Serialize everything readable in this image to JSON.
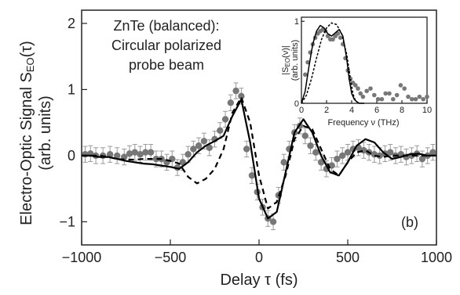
{
  "chart_data": [
    {
      "type": "scatter",
      "xlabel": "Delay τ (fs)",
      "ylabel_line1": "Electro-Optic Signal S",
      "ylabel_sub": "EO",
      "ylabel_arg": "(τ)",
      "ylabel_line2": "(arb. units)",
      "annotation_lines": [
        "ZnTe (balanced):",
        "Circular polarized",
        "probe beam"
      ],
      "panel_label": "(b)",
      "xlim": [
        -1000,
        1000
      ],
      "ylim": [
        -1.35,
        2.2
      ],
      "x_ticks": [
        -1000,
        -500,
        0,
        500,
        1000
      ],
      "x_tick_labels": [
        "−1000",
        "−500",
        "0",
        "500",
        "1000"
      ],
      "y_ticks": [
        -1,
        0,
        1,
        2
      ],
      "y_tick_labels": [
        "−1",
        "0",
        "1",
        "2"
      ],
      "series": [
        {
          "style": "markers-with-errorbars",
          "color": "#777777",
          "x": [
            -980,
            -950,
            -920,
            -880,
            -840,
            -800,
            -760,
            -730,
            -700,
            -670,
            -640,
            -610,
            -580,
            -550,
            -520,
            -490,
            -460,
            -430,
            -400,
            -370,
            -340,
            -310,
            -280,
            -250,
            -220,
            -190,
            -160,
            -130,
            -100,
            -70,
            -40,
            -10,
            20,
            50,
            80,
            110,
            140,
            170,
            200,
            230,
            260,
            290,
            320,
            350,
            380,
            410,
            440,
            470,
            500,
            530,
            560,
            590,
            620,
            650,
            680,
            710,
            740,
            770,
            800,
            830,
            860,
            890,
            920,
            950,
            980
          ],
          "y": [
            0.02,
            0.03,
            0.0,
            0.0,
            0.02,
            0.0,
            -0.02,
            0.03,
            0.05,
            0.02,
            0.05,
            0.05,
            -0.05,
            -0.05,
            -0.1,
            -0.05,
            -0.18,
            -0.1,
            0.02,
            0.1,
            0.15,
            0.22,
            0.12,
            0.25,
            0.38,
            0.55,
            0.8,
            0.98,
            0.9,
            0.1,
            -0.3,
            -0.55,
            -0.78,
            -0.95,
            -1.0,
            -0.6,
            -0.1,
            0.1,
            0.35,
            0.45,
            0.3,
            0.15,
            0.05,
            -0.1,
            -0.2,
            -0.15,
            -0.05,
            0.0,
            0.05,
            0.1,
            0.12,
            0.08,
            0.05,
            0.02,
            0.0,
            0.03,
            0.05,
            0.0,
            0.02,
            -0.02,
            0.0,
            0.03,
            -0.05,
            0.0,
            0.05
          ],
          "err": [
            0.12,
            0.12,
            0.12,
            0.12,
            0.12,
            0.12,
            0.12,
            0.12,
            0.12,
            0.12,
            0.12,
            0.12,
            0.12,
            0.12,
            0.12,
            0.12,
            0.12,
            0.12,
            0.12,
            0.12,
            0.12,
            0.12,
            0.12,
            0.12,
            0.12,
            0.12,
            0.12,
            0.12,
            0.12,
            0.12,
            0.12,
            0.12,
            0.12,
            0.12,
            0.12,
            0.12,
            0.12,
            0.12,
            0.12,
            0.12,
            0.12,
            0.12,
            0.12,
            0.12,
            0.12,
            0.12,
            0.12,
            0.12,
            0.12,
            0.12,
            0.12,
            0.12,
            0.12,
            0.12,
            0.12,
            0.12,
            0.12,
            0.12,
            0.12,
            0.12,
            0.12,
            0.12,
            0.12,
            0.12,
            0.12
          ]
        },
        {
          "style": "solid",
          "color": "#000000",
          "x": [
            -1000,
            -950,
            -900,
            -850,
            -800,
            -750,
            -700,
            -650,
            -600,
            -550,
            -500,
            -450,
            -400,
            -350,
            -300,
            -250,
            -200,
            -150,
            -100,
            -50,
            0,
            50,
            100,
            150,
            200,
            250,
            300,
            350,
            400,
            450,
            500,
            550,
            600,
            650,
            700,
            750,
            800,
            850,
            900,
            950,
            1000
          ],
          "y": [
            0.0,
            0.0,
            -0.02,
            -0.02,
            -0.05,
            -0.08,
            -0.1,
            -0.12,
            -0.13,
            -0.15,
            -0.17,
            -0.2,
            -0.1,
            0.05,
            0.15,
            0.22,
            0.3,
            0.6,
            0.85,
            0.2,
            -0.65,
            -0.95,
            -0.85,
            -0.25,
            0.35,
            0.55,
            0.35,
            0.0,
            -0.25,
            -0.3,
            -0.1,
            0.15,
            0.25,
            0.2,
            0.05,
            -0.05,
            -0.02,
            0.02,
            0.03,
            0.0,
            0.0
          ]
        },
        {
          "style": "dashed",
          "color": "#000000",
          "x": [
            -1000,
            -950,
            -900,
            -850,
            -800,
            -750,
            -700,
            -650,
            -600,
            -550,
            -500,
            -450,
            -400,
            -350,
            -300,
            -250,
            -200,
            -150,
            -100,
            -50,
            0,
            50,
            100,
            150,
            200,
            250,
            300,
            350,
            400,
            450,
            500,
            550,
            600,
            650,
            700,
            750,
            800,
            850,
            900,
            950,
            1000
          ],
          "y": [
            0.0,
            0.0,
            0.0,
            -0.02,
            -0.05,
            -0.06,
            -0.06,
            -0.05,
            -0.05,
            -0.05,
            -0.08,
            -0.12,
            -0.32,
            -0.42,
            -0.35,
            -0.2,
            0.1,
            0.65,
            0.88,
            0.5,
            -0.3,
            -0.8,
            -0.7,
            -0.3,
            0.25,
            0.45,
            0.4,
            0.1,
            -0.2,
            -0.3,
            -0.1,
            0.05,
            0.08,
            0.0,
            -0.02,
            0.0,
            0.0,
            0.0,
            0.0,
            0.0,
            0.0
          ]
        }
      ]
    },
    {
      "type": "scatter",
      "xlabel": "Frequency ν (THz)",
      "ylabel_line1": "|S",
      "ylabel_sub": "EO",
      "ylabel_arg": "(ν)|",
      "ylabel_line2": "(arb. units)",
      "xlim": [
        0,
        10
      ],
      "ylim": [
        0,
        1.05
      ],
      "x_ticks": [
        0,
        2,
        4,
        6,
        8,
        10
      ],
      "x_tick_labels": [
        "0",
        "2",
        "4",
        "6",
        "8",
        "10"
      ],
      "y_ticks": [
        0,
        1
      ],
      "y_tick_labels": [
        "0",
        "1"
      ],
      "series": [
        {
          "style": "markers",
          "color": "#777777",
          "x": [
            0.3,
            0.5,
            0.7,
            0.9,
            1.1,
            1.3,
            1.5,
            1.7,
            1.9,
            2.1,
            2.3,
            2.5,
            2.7,
            2.9,
            3.1,
            3.3,
            3.5,
            3.7,
            3.9,
            4.1,
            4.3,
            4.5,
            4.7,
            4.9,
            5.2,
            5.5,
            5.8,
            6.1,
            6.4,
            6.7,
            7.0,
            7.3,
            7.6,
            7.9,
            8.2,
            8.5,
            8.8,
            9.1,
            9.4,
            9.7,
            10.0
          ],
          "y": [
            0.35,
            0.5,
            0.62,
            0.72,
            0.8,
            0.85,
            0.88,
            0.9,
            0.88,
            0.82,
            0.78,
            0.78,
            0.82,
            0.85,
            0.8,
            0.72,
            0.55,
            0.4,
            0.3,
            0.25,
            0.22,
            0.18,
            0.12,
            0.08,
            0.15,
            0.18,
            0.1,
            0.05,
            0.05,
            0.12,
            0.12,
            0.05,
            0.1,
            0.22,
            0.18,
            0.08,
            0.05,
            0.05,
            0.08,
            0.05,
            0.08
          ]
        },
        {
          "style": "solid",
          "color": "#000000",
          "x": [
            0.0,
            0.3,
            0.6,
            0.9,
            1.2,
            1.5,
            1.8,
            2.1,
            2.4,
            2.7,
            3.0,
            3.3,
            3.6,
            3.8,
            4.0,
            4.2,
            4.4,
            4.6,
            5.0
          ],
          "y": [
            0.0,
            0.15,
            0.45,
            0.72,
            0.88,
            0.95,
            0.92,
            0.85,
            0.82,
            0.86,
            0.9,
            0.82,
            0.55,
            0.3,
            0.12,
            0.05,
            0.02,
            0.0,
            0.0
          ]
        },
        {
          "style": "dashed",
          "color": "#000000",
          "x": [
            0.0,
            0.4,
            0.8,
            1.2,
            1.6,
            2.0,
            2.4,
            2.8,
            3.2,
            3.6,
            3.9,
            4.1,
            4.3,
            4.6
          ],
          "y": [
            0.0,
            0.1,
            0.3,
            0.55,
            0.78,
            0.92,
            0.98,
            0.96,
            0.85,
            0.6,
            0.3,
            0.12,
            0.03,
            0.0
          ]
        }
      ]
    }
  ]
}
